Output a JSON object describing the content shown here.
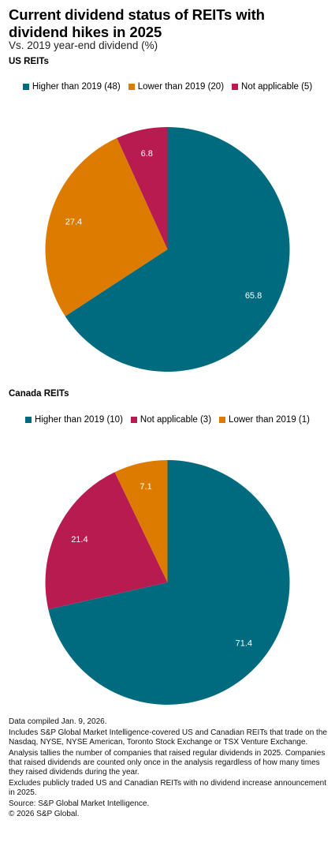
{
  "title": "Current dividend status of REITs with dividend hikes in 2025",
  "subtitle": "Vs. 2019 year-end dividend (%)",
  "colors": {
    "teal": "#006b7f",
    "orange": "#dc7b00",
    "crimson": "#b71b4f"
  },
  "chart_data": [
    {
      "type": "pie",
      "title": "US REITs",
      "legend_placement": "top",
      "series": [
        {
          "name": "Higher than 2019 (48)",
          "value": 65.8,
          "label": "65.8",
          "color": "#006b7f"
        },
        {
          "name": "Lower than 2019 (20)",
          "value": 27.4,
          "label": "27.4",
          "color": "#dc7b00"
        },
        {
          "name": "Not applicable (5)",
          "value": 6.8,
          "label": "6.8",
          "color": "#b71b4f"
        }
      ]
    },
    {
      "type": "pie",
      "title": "Canada REITs",
      "legend_placement": "top",
      "series": [
        {
          "name": "Higher than 2019 (10)",
          "value": 71.4,
          "label": "71.4",
          "color": "#006b7f"
        },
        {
          "name": "Not applicable (3)",
          "value": 21.4,
          "label": "21.4",
          "color": "#b71b4f"
        },
        {
          "name": "Lower than 2019 (1)",
          "value": 7.1,
          "label": "7.1",
          "color": "#dc7b00"
        }
      ]
    }
  ],
  "footnotes": [
    "Data compiled Jan. 9, 2026.",
    "Includes S&P Global Market Intelligence-covered US and Canadian REITs that trade on the Nasdaq, NYSE, NYSE American, Toronto Stock Exchange or TSX Venture Exchange.",
    "Analysis tallies the number of companies that raised regular dividends in 2025. Companies that raised dividends are counted only once in the analysis regardless of how many times they raised dividends during the year.",
    "Excludes publicly traded US and Canadian REITs with no dividend increase announcement in 2025.",
    "Source: S&P Global Market Intelligence.",
    "© 2026 S&P Global."
  ]
}
